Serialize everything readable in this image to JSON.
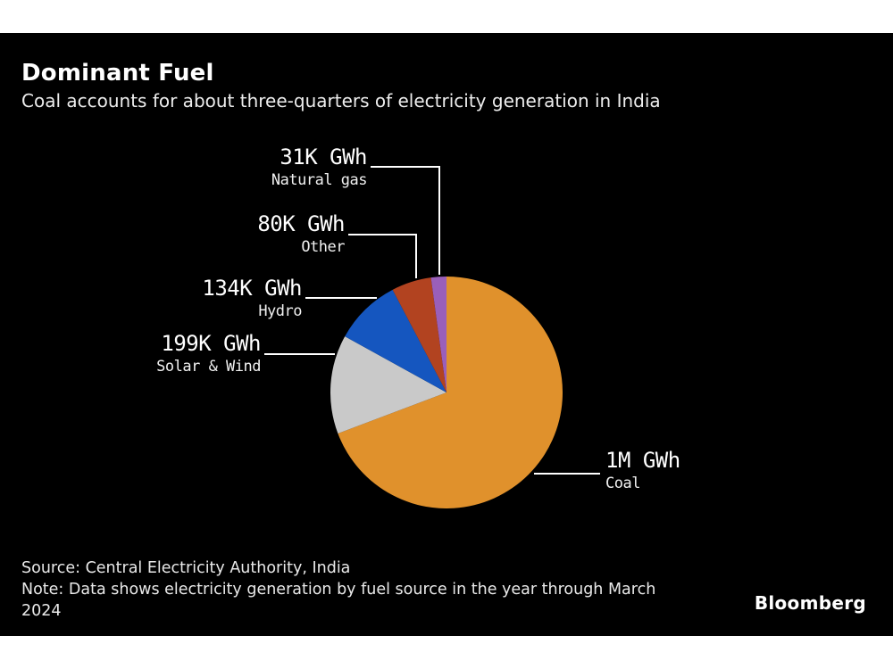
{
  "page": {
    "background": "#ffffff",
    "canvas_background": "#000000",
    "accent_text_color": "#ffffff"
  },
  "header": {
    "title": "Dominant Fuel",
    "subtitle": "Coal accounts for about three-quarters of electricity generation in India"
  },
  "chart_data": {
    "type": "pie",
    "title": "Dominant Fuel",
    "subtitle": "Coal accounts for about three-quarters of electricity generation in India",
    "unit": "GWh",
    "order": "clockwise-from-top",
    "legend_position": "callout-labels",
    "slices": [
      {
        "label": "Coal",
        "value_label": "1M GWh",
        "value_gwh": 1000000,
        "color": "#E0912C"
      },
      {
        "label": "Solar & Wind",
        "value_label": "199K GWh",
        "value_gwh": 199000,
        "color": "#C9C9C9"
      },
      {
        "label": "Hydro",
        "value_label": "134K GWh",
        "value_gwh": 134000,
        "color": "#1556BF"
      },
      {
        "label": "Other",
        "value_label": "80K GWh",
        "value_gwh": 80000,
        "color": "#B24320"
      },
      {
        "label": "Natural gas",
        "value_label": "31K GWh",
        "value_gwh": 31000,
        "color": "#9A5FBA"
      }
    ]
  },
  "footer": {
    "source": "Source: Central Electricity Authority, India",
    "note": "Note: Data shows electricity generation by fuel source in the year through March 2024",
    "brand": "Bloomberg"
  }
}
